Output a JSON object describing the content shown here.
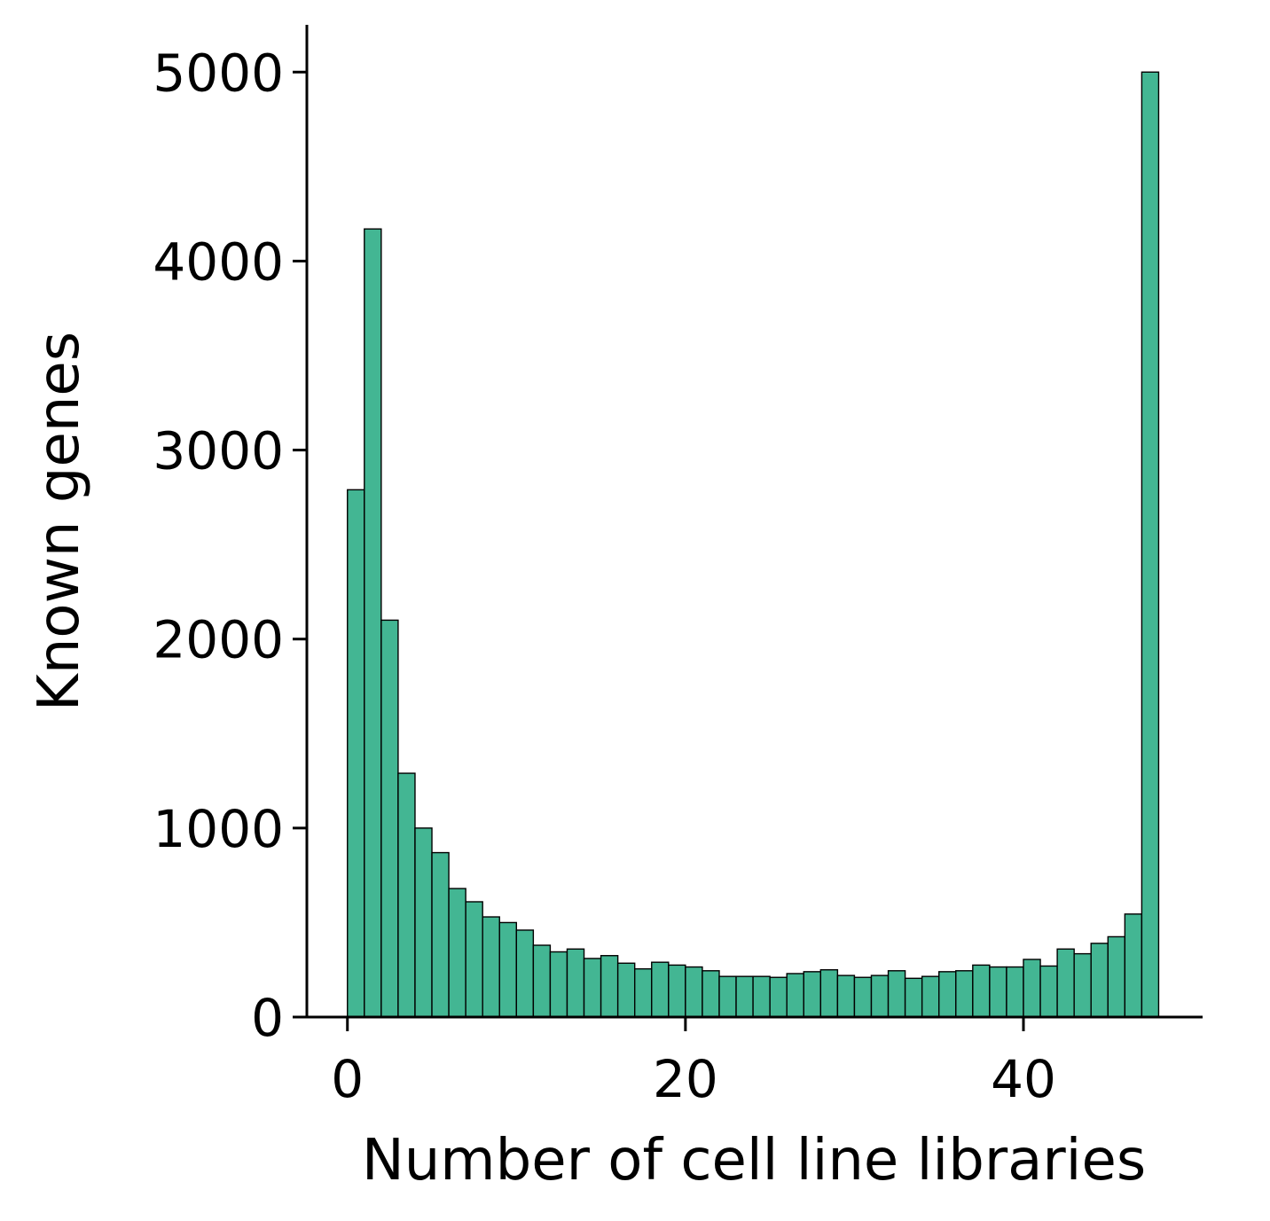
{
  "chart_data": {
    "type": "bar",
    "subtype": "histogram",
    "title": "",
    "xlabel": "Number of cell line libraries",
    "ylabel": "Known genes",
    "xlim": [
      -2.4,
      50.6
    ],
    "ylim": [
      0,
      5250
    ],
    "xticks": [
      0,
      20,
      40
    ],
    "yticks": [
      0,
      1000,
      2000,
      3000,
      4000,
      5000
    ],
    "bin_edges": [
      0,
      1,
      2,
      3,
      4,
      5,
      6,
      7,
      8,
      9,
      10,
      11,
      12,
      13,
      14,
      15,
      16,
      17,
      18,
      19,
      20,
      21,
      22,
      23,
      24,
      25,
      26,
      27,
      28,
      29,
      30,
      31,
      32,
      33,
      34,
      35,
      36,
      37,
      38,
      39,
      40,
      41,
      42,
      43,
      44,
      45,
      46,
      47,
      48
    ],
    "values": [
      2790,
      4170,
      2100,
      1290,
      1000,
      870,
      680,
      610,
      530,
      500,
      460,
      380,
      345,
      360,
      310,
      325,
      285,
      255,
      290,
      275,
      265,
      245,
      215,
      215,
      215,
      210,
      230,
      240,
      250,
      220,
      210,
      220,
      245,
      205,
      215,
      240,
      245,
      275,
      265,
      265,
      305,
      270,
      360,
      335,
      390,
      425,
      545,
      5000
    ],
    "bar_color": "#43b693",
    "edge_color": "#000000",
    "grid": false,
    "legend": "none"
  }
}
